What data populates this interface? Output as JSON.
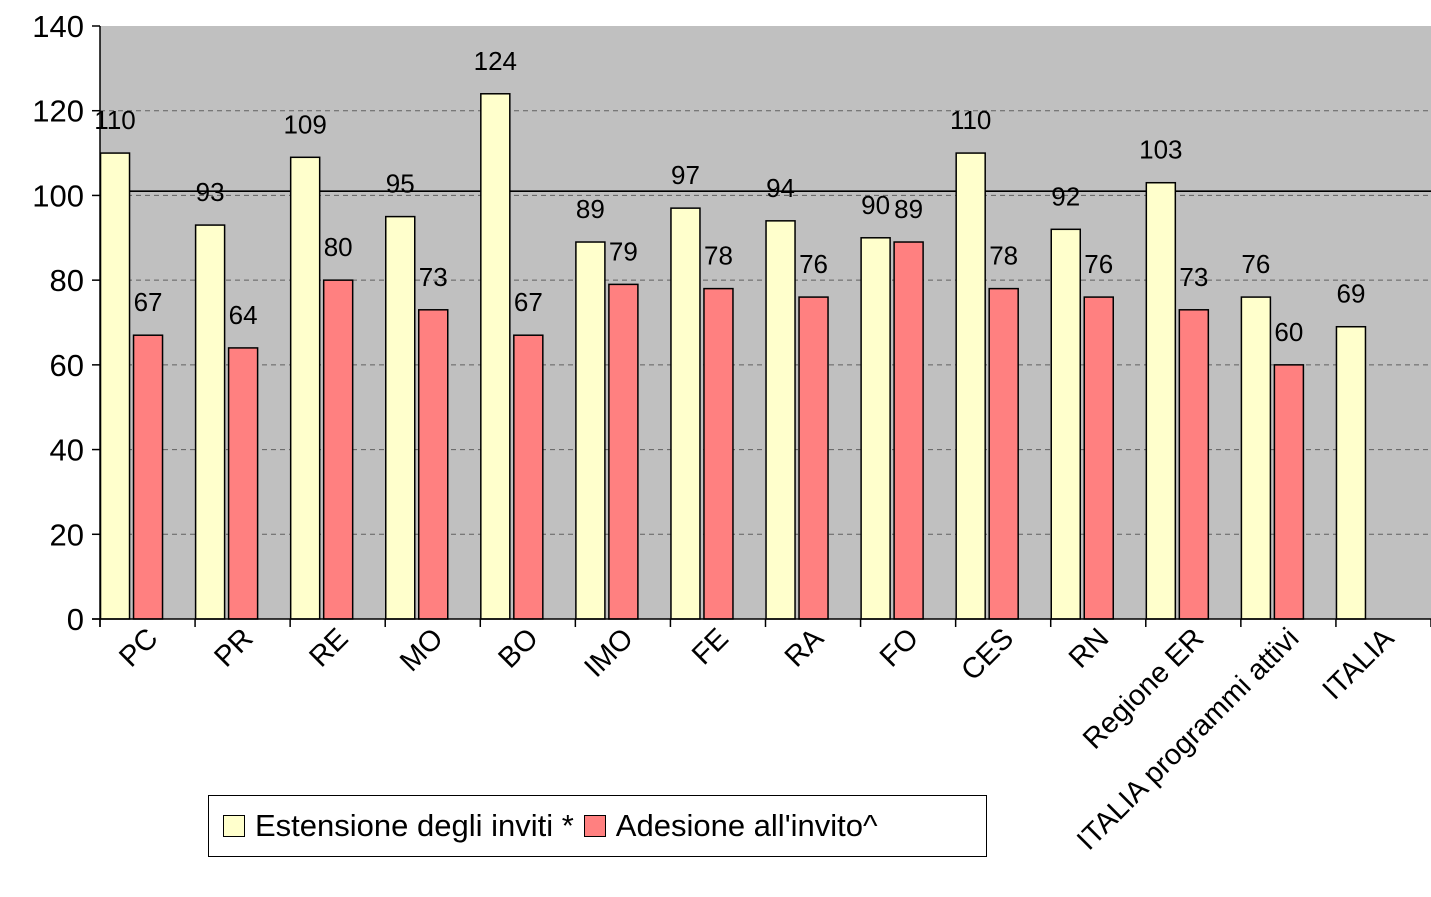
{
  "chart_data": {
    "type": "bar",
    "categories": [
      "PC",
      "PR",
      "RE",
      "MO",
      "BO",
      "IMO",
      "FE",
      "RA",
      "FO",
      "CES",
      "RN",
      "Regione ER",
      "ITALIA programmi attivi",
      "ITALIA"
    ],
    "series": [
      {
        "name": "Estensione degli inviti *",
        "values": [
          110,
          93,
          109,
          95,
          124,
          89,
          97,
          94,
          90,
          110,
          92,
          103,
          76,
          69
        ],
        "labels": [
          "110",
          "93",
          "109",
          "95",
          "124",
          "89",
          "97",
          "94",
          "90",
          "110",
          "92",
          "103",
          "76",
          "69"
        ],
        "color": "#FFFFCC"
      },
      {
        "name": "Adesione all'invito^",
        "values": [
          67,
          64,
          80,
          73,
          67,
          79,
          78,
          76,
          89,
          78,
          76,
          73,
          60,
          null
        ],
        "labels": [
          "67",
          "64",
          "80",
          "73",
          "67",
          "79",
          "78",
          "76",
          "89",
          "78",
          "76",
          "73",
          "60",
          ""
        ],
        "color": "#FF8080"
      }
    ],
    "yticks": [
      "0",
      "20",
      "40",
      "60",
      "80",
      "100",
      "120",
      "140"
    ],
    "ylim": [
      0,
      140
    ],
    "reference_line": 101,
    "plot_background": "#C0C0C0",
    "grid": true,
    "legend_position": "bottom"
  }
}
